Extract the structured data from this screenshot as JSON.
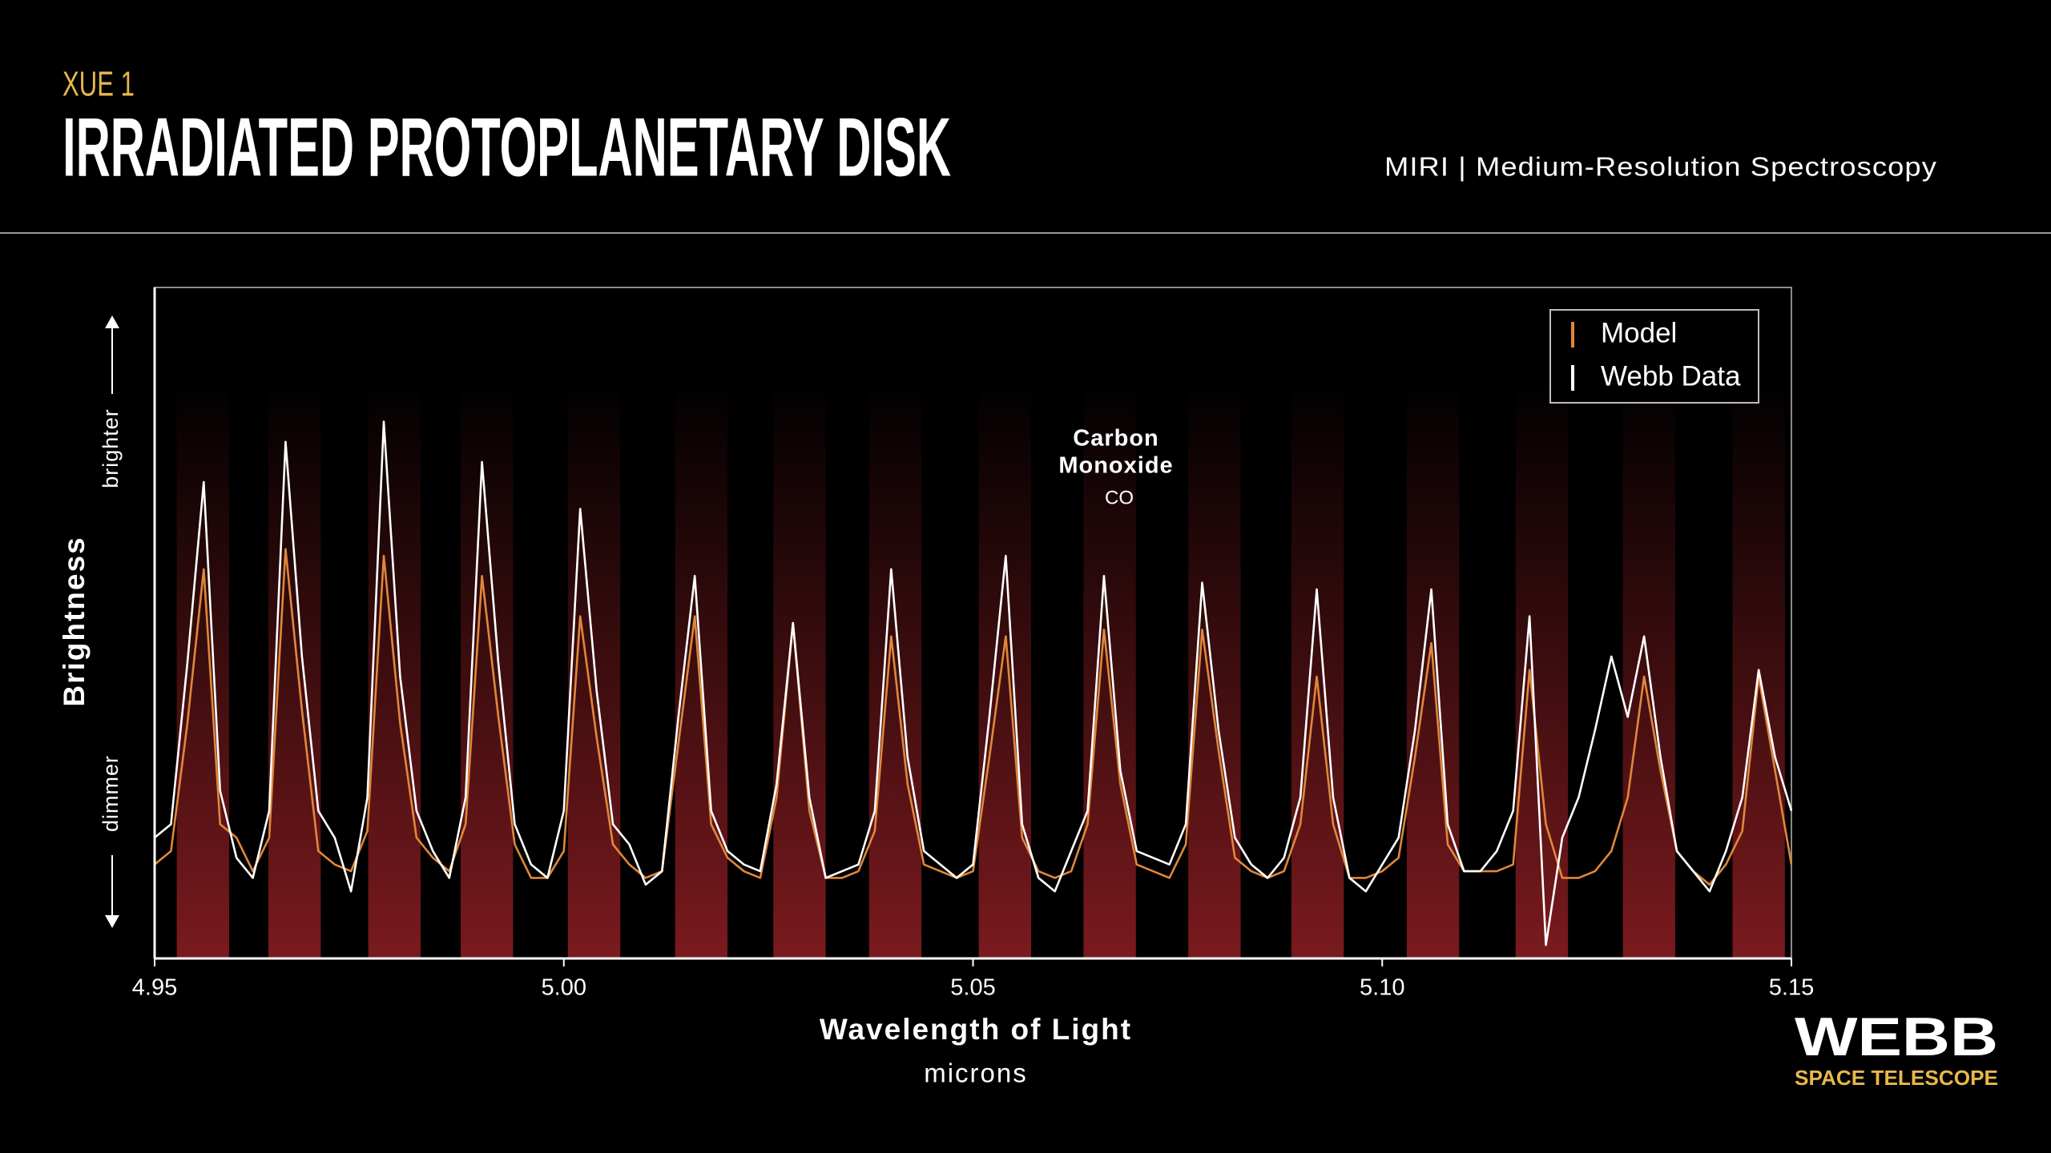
{
  "header": {
    "eyebrow": "XUE 1",
    "title": "IRRADIATED PROTOPLANETARY DISK",
    "subtitle": "MIRI | Medium-Resolution Spectroscopy"
  },
  "logo": {
    "name": "WEBB",
    "tagline": "SPACE TELESCOPE"
  },
  "chart_data": {
    "type": "line",
    "x_label": "Wavelength of Light",
    "x_unit": "microns",
    "y_label": "Brightness",
    "y_high_label": "brighter",
    "y_low_label": "dimmer",
    "annotation": {
      "lines": [
        "Carbon",
        "Monoxide"
      ],
      "formula": "CO"
    },
    "xlim": [
      4.95,
      5.15
    ],
    "xticks": [
      4.95,
      {
        "value": 5,
        "label": "5.00"
      },
      5.05,
      {
        "value": 5.1,
        "label": "5.10"
      },
      5.15
    ],
    "ylim": [
      0,
      100
    ],
    "legend": "top-right",
    "highlight_color": "#7a1a1e",
    "highlight_ranges": [
      [
        4.9527,
        4.9591
      ],
      [
        4.9639,
        4.9703
      ],
      [
        4.9761,
        4.9825
      ],
      [
        4.9874,
        4.9938
      ],
      [
        5.0005,
        5.0069
      ],
      [
        5.0136,
        5.02
      ],
      [
        5.0256,
        5.032
      ],
      [
        5.0373,
        5.0437
      ],
      [
        5.0507,
        5.0571
      ],
      [
        5.0635,
        5.0699
      ],
      [
        5.0763,
        5.0827
      ],
      [
        5.0889,
        5.0953
      ],
      [
        5.103,
        5.1094
      ],
      [
        5.1163,
        5.1227
      ],
      [
        5.1294,
        5.1358
      ],
      [
        5.1428,
        5.1492
      ]
    ],
    "x": [
      4.95,
      4.952,
      4.954,
      4.956,
      4.958,
      4.96,
      4.962,
      4.964,
      4.966,
      4.968,
      4.97,
      4.972,
      4.974,
      4.976,
      4.978,
      4.98,
      4.982,
      4.984,
      4.986,
      4.988,
      4.99,
      4.992,
      4.994,
      4.996,
      4.998,
      5.0,
      5.002,
      5.004,
      5.006,
      5.008,
      5.01,
      5.012,
      5.014,
      5.016,
      5.018,
      5.02,
      5.022,
      5.024,
      5.026,
      5.028,
      5.03,
      5.032,
      5.034,
      5.036,
      5.038,
      5.04,
      5.042,
      5.044,
      5.046,
      5.048,
      5.05,
      5.052,
      5.054,
      5.056,
      5.058,
      5.06,
      5.062,
      5.064,
      5.066,
      5.068,
      5.07,
      5.072,
      5.074,
      5.076,
      5.078,
      5.08,
      5.082,
      5.084,
      5.086,
      5.088,
      5.09,
      5.092,
      5.094,
      5.096,
      5.098,
      5.1,
      5.102,
      5.104,
      5.106,
      5.108,
      5.11,
      5.112,
      5.114,
      5.116,
      5.118,
      5.12,
      5.122,
      5.124,
      5.126,
      5.128,
      5.13,
      5.132,
      5.134,
      5.136,
      5.138,
      5.14,
      5.142,
      5.144,
      5.146,
      5.148,
      5.15
    ],
    "series": [
      {
        "name": "Model",
        "color": "#e0873a",
        "values": [
          14,
          16,
          35,
          58,
          20,
          18,
          13,
          18,
          61,
          37,
          16,
          14,
          13,
          19,
          60,
          35,
          18,
          15,
          13,
          20,
          57,
          36,
          17,
          12,
          12,
          16,
          51,
          33,
          17,
          14,
          12,
          13,
          32,
          51,
          20,
          15,
          13,
          12,
          24,
          50,
          22,
          12,
          12,
          13,
          19,
          48,
          26,
          14,
          13,
          12,
          13,
          30,
          48,
          18,
          13,
          12,
          13,
          20,
          49,
          26,
          14,
          13,
          12,
          17,
          49,
          31,
          15,
          13,
          12,
          13,
          20,
          42,
          20,
          12,
          12,
          13,
          15,
          30,
          47,
          17,
          13,
          13,
          13,
          14,
          43,
          20,
          12,
          12,
          13,
          16,
          24,
          42,
          28,
          16,
          13,
          11,
          14,
          19,
          42,
          28,
          14
        ]
      },
      {
        "name": "Webb Data",
        "color": "#ffffff",
        "values": [
          18,
          20,
          44,
          71,
          25,
          15,
          12,
          22,
          77,
          45,
          22,
          18,
          10,
          24,
          80,
          42,
          22,
          16,
          12,
          24,
          74,
          44,
          20,
          14,
          12,
          22,
          67,
          40,
          20,
          17,
          11,
          13,
          36,
          57,
          22,
          16,
          14,
          13,
          26,
          50,
          24,
          12,
          13,
          14,
          22,
          58,
          30,
          16,
          14,
          12,
          14,
          36,
          60,
          20,
          12,
          10,
          16,
          22,
          57,
          28,
          16,
          15,
          14,
          20,
          56,
          34,
          18,
          14,
          12,
          15,
          24,
          55,
          24,
          12,
          10,
          14,
          18,
          34,
          55,
          20,
          13,
          13,
          16,
          22,
          51,
          2,
          18,
          24,
          34,
          45,
          36,
          48,
          30,
          16,
          13,
          10,
          16,
          24,
          43,
          30,
          22
        ]
      }
    ]
  }
}
